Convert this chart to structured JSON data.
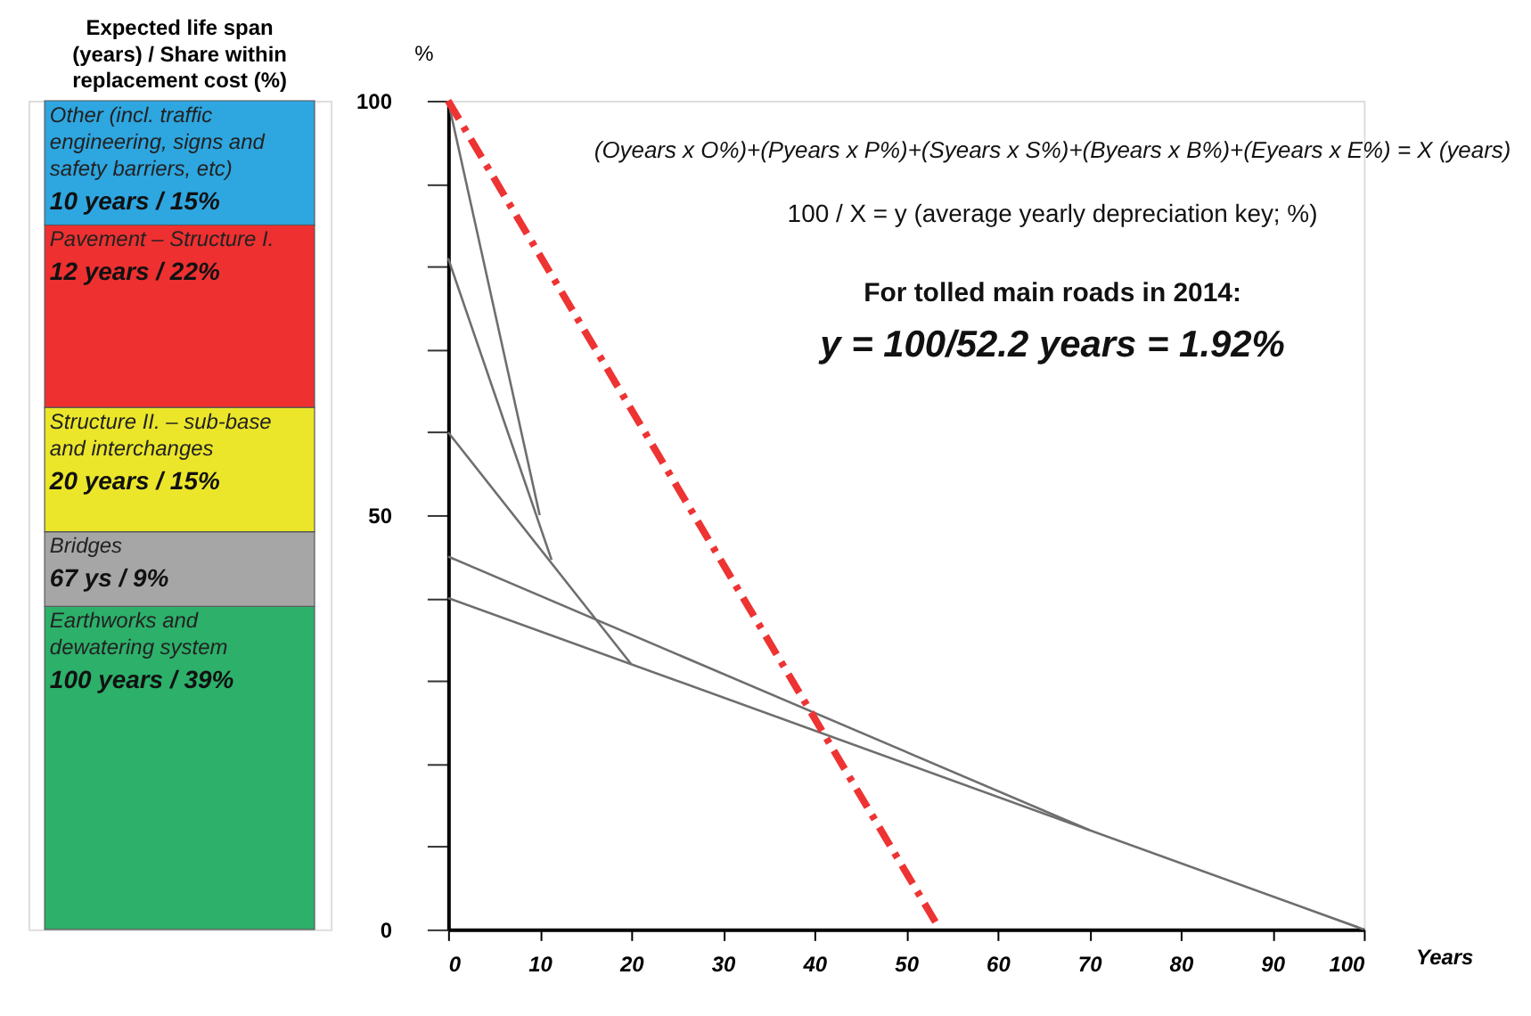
{
  "chart_data": [
    {
      "type": "bar",
      "stacked": true,
      "title": "Expected life span (years) / Share within replacement cost (%)",
      "categories": [
        null
      ],
      "ylim": [
        0,
        100
      ],
      "tick_labels": false,
      "legend": false,
      "series": [
        {
          "name": "Earthworks and dewatering system",
          "color": "#2db06a",
          "values": [
            39
          ],
          "value_labels": [
            "100 years / 39%"
          ]
        },
        {
          "name": "Bridges",
          "color": "#a6a6a6",
          "values": [
            9
          ],
          "value_labels": [
            "67 ys / 9%"
          ]
        },
        {
          "name": "Structure II. – sub-base and interchanges",
          "color": "#ebe62a",
          "values": [
            15
          ],
          "value_labels": [
            "20 years / 15%"
          ]
        },
        {
          "name": "Pavement – Structure I.",
          "color": "#ee3030",
          "values": [
            22
          ],
          "value_labels": [
            "12 years / 22%"
          ]
        },
        {
          "name": "Other (incl. traffic engineering, signs and safety barriers, etc)",
          "color": "#2ea6e0",
          "values": [
            15
          ],
          "value_labels": [
            "10 years / 15%"
          ]
        }
      ]
    },
    {
      "type": "line",
      "xlabel": "Years",
      "ylabel": "%",
      "xlim": [
        0,
        100
      ],
      "ylim": [
        0,
        100
      ],
      "xticks": [
        0,
        10,
        20,
        30,
        40,
        50,
        60,
        70,
        80,
        90,
        100
      ],
      "yticks": [
        0,
        {
          "value": 10,
          "label": null
        },
        {
          "value": 20,
          "label": null
        },
        {
          "value": 30,
          "label": null
        },
        {
          "value": 40,
          "label": null
        },
        50,
        {
          "value": 60,
          "label": null
        },
        {
          "value": 70,
          "label": null
        },
        {
          "value": 80,
          "label": null
        },
        {
          "value": 90,
          "label": null
        },
        100
      ],
      "grid": false,
      "legend": false,
      "marker": "none",
      "annotations": [
        "(Oyears x O%)+(Pyears x P%)+(Syears x S%)+(Byears x B%)+(Eyears x E%) = X (years)",
        "100 / X = y (average yearly depreciation key; %)",
        "For tolled main roads in 2014:",
        "y = 100/52.2 years = 1.92%"
      ],
      "series": [
        {
          "color": "#6e6e6e",
          "x": [
            0,
            10
          ],
          "values": [
            100,
            50
          ]
        },
        {
          "color": "#6e6e6e",
          "x": [
            0,
            11.3
          ],
          "values": [
            81,
            44.6
          ]
        },
        {
          "color": "#6e6e6e",
          "x": [
            0,
            20
          ],
          "values": [
            60,
            32
          ]
        },
        {
          "color": "#6e6e6e",
          "x": [
            0,
            70
          ],
          "values": [
            45,
            12
          ]
        },
        {
          "color": "#6e6e6e",
          "x": [
            0,
            100
          ],
          "values": [
            40,
            0
          ]
        },
        {
          "color": "#ee3333",
          "line_style": "dashed",
          "x": [
            0,
            53.7
          ],
          "values": [
            100,
            0
          ]
        }
      ]
    }
  ]
}
